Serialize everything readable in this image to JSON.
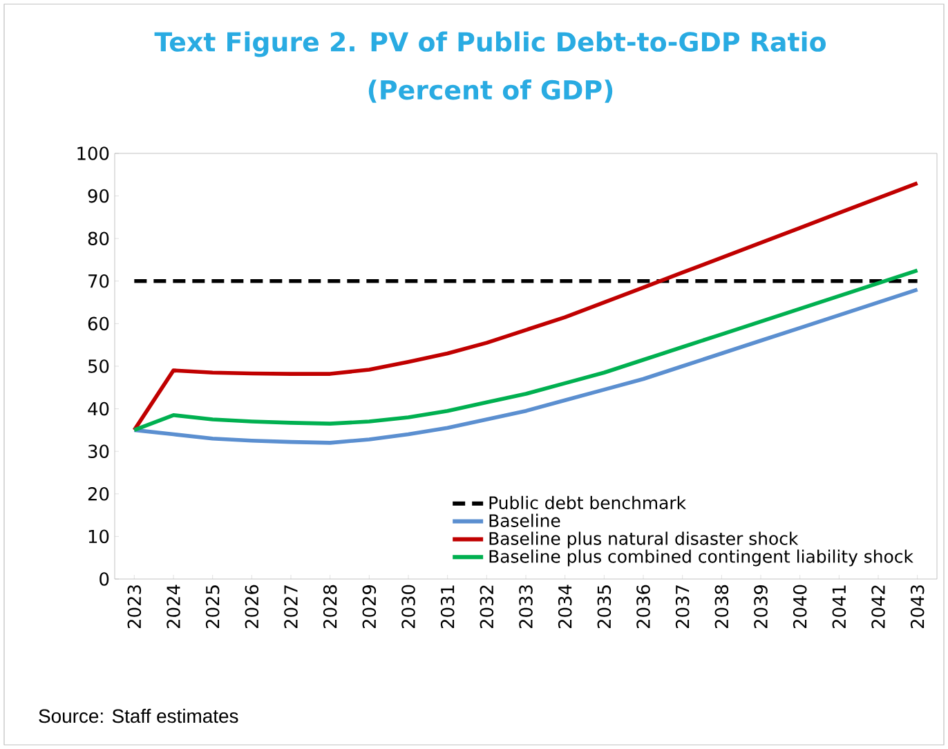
{
  "chart_data": {
    "type": "line",
    "title": "Text Figure 2. PV of Public Debt-to-GDP Ratio",
    "subtitle": "(Percent of GDP)",
    "categories": [
      "2023",
      "2024",
      "2025",
      "2026",
      "2027",
      "2028",
      "2029",
      "2030",
      "2031",
      "2032",
      "2033",
      "2034",
      "2035",
      "2036",
      "2037",
      "2038",
      "2039",
      "2040",
      "2041",
      "2042",
      "2043"
    ],
    "series": [
      {
        "name": "Public debt benchmark",
        "color": "#000000",
        "line_style": "dashed",
        "values": [
          70,
          70,
          70,
          70,
          70,
          70,
          70,
          70,
          70,
          70,
          70,
          70,
          70,
          70,
          70,
          70,
          70,
          70,
          70,
          70,
          70
        ]
      },
      {
        "name": "Baseline",
        "color": "#5b8fd0",
        "values": [
          35,
          34,
          33,
          32.5,
          32.2,
          32,
          32.8,
          34,
          35.5,
          37.5,
          39.5,
          42,
          44.5,
          47,
          50,
          53,
          56,
          59,
          62,
          65,
          68
        ]
      },
      {
        "name": "Baseline plus natural disaster shock",
        "color": "#c00000",
        "values": [
          35,
          49,
          48.5,
          48.3,
          48.2,
          48.2,
          49.2,
          51,
          53,
          55.5,
          58.5,
          61.5,
          65,
          68.5,
          72,
          75.5,
          79,
          82.5,
          86,
          89.5,
          93
        ]
      },
      {
        "name": "Baseline plus combined contingent liability shock",
        "color": "#00b050",
        "values": [
          35,
          38.5,
          37.5,
          37,
          36.7,
          36.5,
          37,
          38,
          39.5,
          41.5,
          43.5,
          46,
          48.5,
          51.5,
          54.5,
          57.5,
          60.5,
          63.5,
          66.5,
          69.5,
          72.5
        ]
      }
    ],
    "ylim": [
      0,
      100
    ],
    "yticks": [
      0,
      10,
      20,
      30,
      40,
      50,
      60,
      70,
      80,
      90,
      100
    ],
    "legend": "bottom right",
    "annotations": [
      "Source: Staff estimates"
    ]
  }
}
